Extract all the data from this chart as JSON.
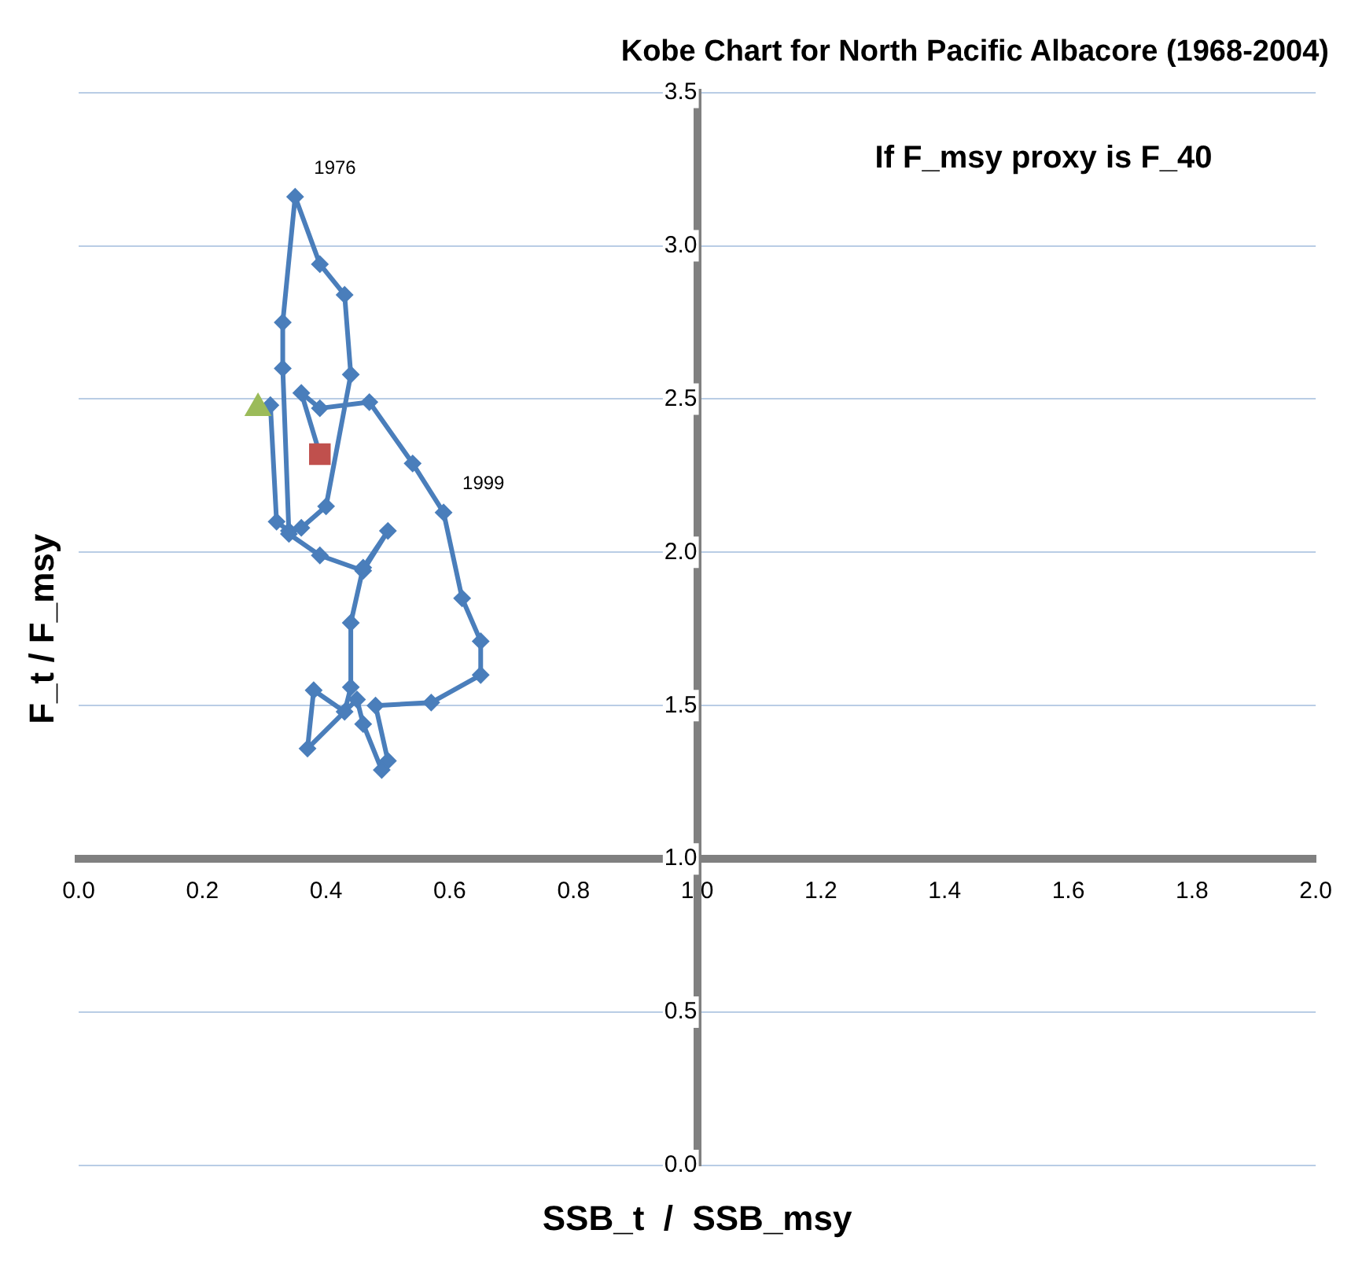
{
  "chart_data": {
    "type": "line",
    "title": "Kobe Chart for North Pacific Albacore (1968-2004)",
    "xlabel": "SSB_t  /  SSB_msy",
    "ylabel": "F_t / F_msy",
    "series": [
      {
        "type": "line",
        "color": "#4a7ebb",
        "marker": "diamond",
        "x": [
          0.31,
          0.32,
          0.34,
          0.36,
          0.4,
          0.44,
          0.43,
          0.39,
          0.35,
          0.33,
          0.33,
          0.34,
          0.39,
          0.46,
          0.5,
          0.46,
          0.44,
          0.44,
          0.43,
          0.38,
          0.37,
          0.45,
          0.46,
          0.49,
          0.5,
          0.48,
          0.57,
          0.65,
          0.65,
          0.62,
          0.59,
          0.54,
          0.47,
          0.39,
          0.36,
          0.39
        ],
        "values": [
          2.48,
          2.1,
          2.07,
          2.08,
          2.15,
          2.58,
          2.84,
          2.94,
          3.16,
          2.75,
          2.6,
          2.06,
          1.99,
          1.94,
          2.07,
          1.95,
          1.77,
          1.56,
          1.48,
          1.55,
          1.36,
          1.52,
          1.44,
          1.29,
          1.32,
          1.5,
          1.51,
          1.6,
          1.71,
          1.85,
          2.13,
          2.29,
          2.49,
          2.47,
          2.52,
          2.32
        ]
      },
      {
        "type": "scatter",
        "color": "#9bbb59",
        "marker": "triangle",
        "x": [
          0.29
        ],
        "values": [
          2.47
        ]
      },
      {
        "type": "scatter",
        "color": "#c0504d",
        "marker": "square",
        "x": [
          0.39
        ],
        "values": [
          2.32
        ]
      }
    ],
    "xlim": [
      0,
      2
    ],
    "ylim": [
      0,
      3.5
    ],
    "xticks": [
      {
        "value": 0,
        "label": "0.0"
      },
      {
        "value": 0.2,
        "label": "0.2"
      },
      {
        "value": 0.4,
        "label": "0.4"
      },
      {
        "value": 0.6,
        "label": "0.6"
      },
      {
        "value": 0.8,
        "label": "0.8"
      },
      {
        "value": 1,
        "label": "1.0"
      },
      {
        "value": 1.2,
        "label": "1.2"
      },
      {
        "value": 1.4,
        "label": "1.4"
      },
      {
        "value": 1.6,
        "label": "1.6"
      },
      {
        "value": 1.8,
        "label": "1.8"
      },
      {
        "value": 2,
        "label": "2.0"
      }
    ],
    "yticks": [
      {
        "value": 0,
        "label": "0.0"
      },
      {
        "value": 0.5,
        "label": "0.5"
      },
      {
        "value": 1,
        "label": "1.0"
      },
      {
        "value": 1.5,
        "label": "1.5"
      },
      {
        "value": 2,
        "label": "2.0"
      },
      {
        "value": 2.5,
        "label": "2.5"
      },
      {
        "value": 3,
        "label": "3.0"
      },
      {
        "value": 3.5,
        "label": "3.5"
      }
    ],
    "grid": "y",
    "legend": false,
    "annotations": [
      {
        "text": "1976",
        "x": 0.35,
        "y": 3.16
      },
      {
        "text": "1999",
        "x": 0.59,
        "y": 2.13
      },
      "If F_msy proxy is F_40"
    ]
  }
}
